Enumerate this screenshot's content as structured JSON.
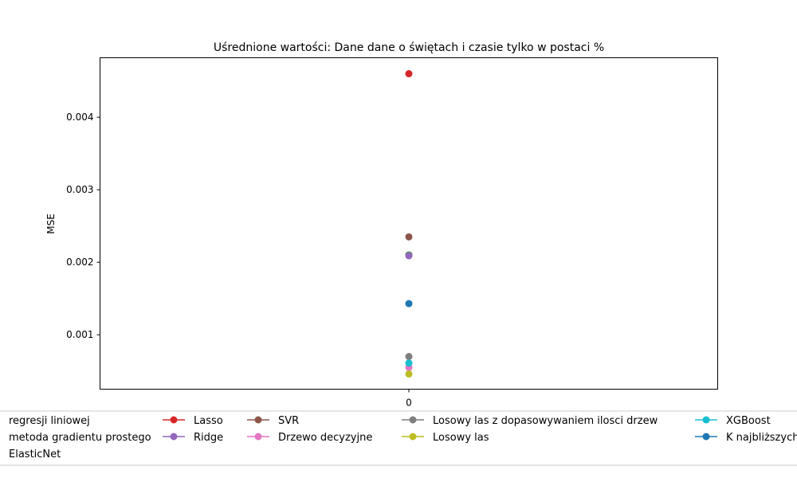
{
  "chart_data": {
    "type": "scatter",
    "title": "Uśrednione wartości: Dane dane o świętach i czasie tylko w postaci %",
    "xlabel": "",
    "ylabel": "MSE",
    "categories": [
      "0"
    ],
    "ylim": [
      0.00025,
      0.00482
    ],
    "yticks": [
      "0.001",
      "0.002",
      "0.003",
      "0.004"
    ],
    "grid": false,
    "legend_position": "bottom",
    "series": [
      {
        "name": "regresji liniowej",
        "color": "#1f77b4",
        "values": [
          0.0021
        ]
      },
      {
        "name": "metoda gradientu prostego",
        "color": "#ff7f0e",
        "values": [
          0.0021
        ]
      },
      {
        "name": "ElasticNet",
        "color": "#2ca02c",
        "values": [
          0.0021
        ]
      },
      {
        "name": "Lasso",
        "color": "#d62728",
        "values": [
          0.0046
        ]
      },
      {
        "name": "Ridge",
        "color": "#9467bd",
        "values": [
          0.00209
        ]
      },
      {
        "name": "SVR",
        "color": "#8c564b",
        "values": [
          0.00235
        ]
      },
      {
        "name": "Drzewo decyzyjne",
        "color": "#e377c2",
        "values": [
          0.00055
        ]
      },
      {
        "name": "Losowy las z dopasowywaniem ilosci drzew",
        "color": "#7f7f7f",
        "values": [
          0.0007
        ]
      },
      {
        "name": "Losowy las",
        "color": "#bcbd22",
        "values": [
          0.00046
        ]
      },
      {
        "name": "XGBoost",
        "color": "#17becf",
        "values": [
          0.00061
        ]
      },
      {
        "name": "K najbliższych",
        "color": "#1f77b4",
        "values": [
          0.00143
        ]
      }
    ]
  }
}
